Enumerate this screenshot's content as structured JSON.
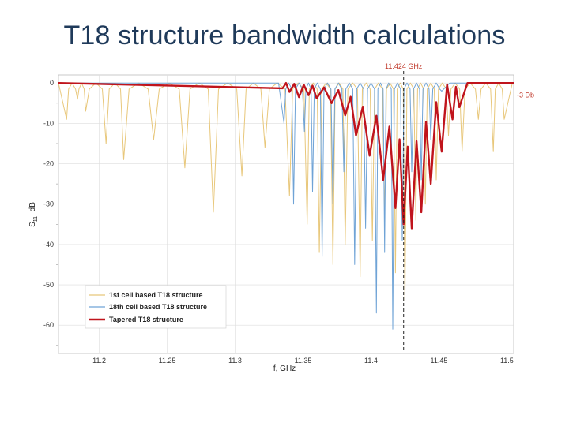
{
  "slide": {
    "title": "T18 structure bandwidth calculations"
  },
  "chart_data": {
    "type": "line",
    "title": "",
    "xlabel": "f, GHz",
    "ylabel_main": "S",
    "ylabel_sub": "11",
    "ylabel_unit": ", dB",
    "xlim": [
      11.17,
      11.505
    ],
    "ylim": [
      -67,
      2
    ],
    "x_ticks": [
      11.2,
      11.25,
      11.3,
      11.35,
      11.4,
      11.45,
      11.5
    ],
    "x_tick_labels": [
      "11.2",
      "11.25",
      "11.3",
      "11.35",
      "11.4",
      "11.45",
      "11.5"
    ],
    "y_ticks": [
      0,
      -10,
      -20,
      -30,
      -40,
      -50,
      -60
    ],
    "y_tick_labels": [
      "0",
      "-10",
      "-20",
      "-30",
      "-40",
      "-50",
      "-60"
    ],
    "grid": true,
    "legend_position": "bottom-left",
    "annotations": {
      "vline": {
        "x": 11.424,
        "label": "11.424 GHz"
      },
      "hline": {
        "y": -3,
        "label": "-3 Db"
      }
    },
    "series": [
      {
        "name": "1st cell based T18 structure",
        "color": "#e8c77a",
        "style": "thin",
        "dips": [
          [
            11.176,
            -9
          ],
          [
            11.184,
            -4
          ],
          [
            11.19,
            -7
          ],
          [
            11.205,
            -15
          ],
          [
            11.218,
            -19
          ],
          [
            11.24,
            -14
          ],
          [
            11.263,
            -21
          ],
          [
            11.284,
            -32
          ],
          [
            11.305,
            -23
          ],
          [
            11.322,
            -16
          ],
          [
            11.34,
            -28
          ],
          [
            11.353,
            -35
          ],
          [
            11.362,
            -42
          ],
          [
            11.372,
            -45
          ],
          [
            11.381,
            -40
          ],
          [
            11.392,
            -48
          ],
          [
            11.401,
            -39
          ],
          [
            11.41,
            -33
          ],
          [
            11.418,
            -47
          ],
          [
            11.425,
            -54
          ],
          [
            11.433,
            -34
          ],
          [
            11.44,
            -30
          ],
          [
            11.448,
            -24
          ],
          [
            11.457,
            -13
          ],
          [
            11.467,
            -17
          ],
          [
            11.479,
            -9
          ],
          [
            11.49,
            -17
          ],
          [
            11.498,
            -9
          ]
        ]
      },
      {
        "name": "18th cell based T18 structure",
        "color": "#6fa3d6",
        "style": "thin",
        "dips": [
          [
            11.336,
            -10
          ],
          [
            11.343,
            -30
          ],
          [
            11.351,
            -12
          ],
          [
            11.357,
            -27
          ],
          [
            11.364,
            -43
          ],
          [
            11.372,
            -30
          ],
          [
            11.38,
            -22
          ],
          [
            11.388,
            -45
          ],
          [
            11.396,
            -36
          ],
          [
            11.404,
            -57
          ],
          [
            11.41,
            -42
          ],
          [
            11.416,
            -61
          ],
          [
            11.423,
            -39
          ],
          [
            11.43,
            -22
          ],
          [
            11.437,
            -24
          ],
          [
            11.444,
            -14
          ],
          [
            11.452,
            -2
          ]
        ]
      },
      {
        "name": "Tapered T18 structure",
        "color": "#c0141c",
        "style": "thick",
        "dips": [
          [
            11.335,
            -1.3
          ],
          [
            11.34,
            -2.2
          ],
          [
            11.347,
            -3.5
          ],
          [
            11.354,
            -3.0
          ],
          [
            11.36,
            -3.8
          ],
          [
            11.371,
            -5
          ],
          [
            11.381,
            -8
          ],
          [
            11.389,
            -13
          ],
          [
            11.399,
            -18
          ],
          [
            11.409,
            -24
          ],
          [
            11.418,
            -31
          ],
          [
            11.424,
            -35
          ],
          [
            11.43,
            -36
          ],
          [
            11.437,
            -32
          ],
          [
            11.444,
            -25
          ],
          [
            11.452,
            -17
          ],
          [
            11.46,
            -9
          ],
          [
            11.465,
            -6
          ]
        ]
      }
    ]
  }
}
